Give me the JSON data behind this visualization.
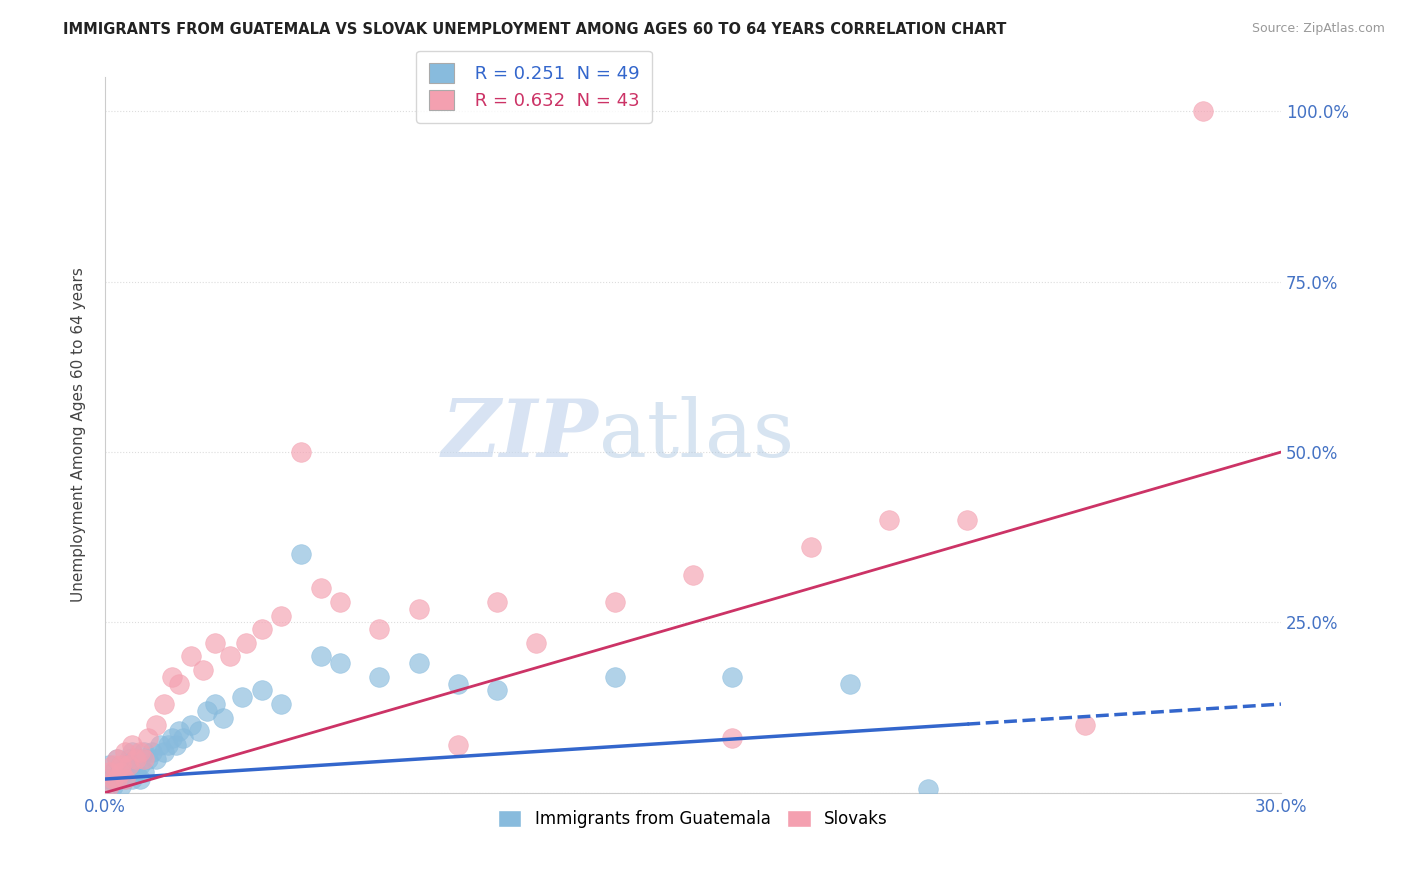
{
  "title": "IMMIGRANTS FROM GUATEMALA VS SLOVAK UNEMPLOYMENT AMONG AGES 60 TO 64 YEARS CORRELATION CHART",
  "source": "Source: ZipAtlas.com",
  "ylabel": "Unemployment Among Ages 60 to 64 years",
  "xlim": [
    0.0,
    0.3
  ],
  "ylim": [
    0.0,
    1.05
  ],
  "xticks": [
    0.0,
    0.05,
    0.1,
    0.15,
    0.2,
    0.25,
    0.3
  ],
  "yticks": [
    0.0,
    0.25,
    0.5,
    0.75,
    1.0
  ],
  "yticklabels": [
    "",
    "25.0%",
    "50.0%",
    "75.0%",
    "100.0%"
  ],
  "series1_name": "Immigrants from Guatemala",
  "series1_color": "#88bbdd",
  "series1_R": 0.251,
  "series1_N": 49,
  "series2_name": "Slovaks",
  "series2_color": "#f4a0b0",
  "series2_R": 0.632,
  "series2_N": 43,
  "background_color": "#ffffff",
  "grid_color": "#dddddd",
  "watermark_zip": "ZIP",
  "watermark_atlas": "atlas",
  "trend1_color": "#3366cc",
  "trend2_color": "#cc3366",
  "scatter1_x": [
    0.001,
    0.001,
    0.002,
    0.002,
    0.003,
    0.003,
    0.004,
    0.004,
    0.005,
    0.005,
    0.006,
    0.006,
    0.007,
    0.007,
    0.008,
    0.008,
    0.009,
    0.009,
    0.01,
    0.01,
    0.011,
    0.012,
    0.013,
    0.014,
    0.015,
    0.016,
    0.017,
    0.018,
    0.019,
    0.02,
    0.022,
    0.024,
    0.026,
    0.028,
    0.03,
    0.035,
    0.04,
    0.045,
    0.05,
    0.055,
    0.06,
    0.07,
    0.08,
    0.09,
    0.1,
    0.13,
    0.16,
    0.19,
    0.21
  ],
  "scatter1_y": [
    0.02,
    0.04,
    0.01,
    0.03,
    0.02,
    0.05,
    0.01,
    0.03,
    0.02,
    0.04,
    0.03,
    0.05,
    0.02,
    0.06,
    0.03,
    0.05,
    0.02,
    0.04,
    0.03,
    0.06,
    0.05,
    0.06,
    0.05,
    0.07,
    0.06,
    0.07,
    0.08,
    0.07,
    0.09,
    0.08,
    0.1,
    0.09,
    0.12,
    0.13,
    0.11,
    0.14,
    0.15,
    0.13,
    0.35,
    0.2,
    0.19,
    0.17,
    0.19,
    0.16,
    0.15,
    0.17,
    0.17,
    0.16,
    0.005
  ],
  "scatter2_x": [
    0.001,
    0.001,
    0.002,
    0.002,
    0.003,
    0.003,
    0.004,
    0.004,
    0.005,
    0.005,
    0.006,
    0.007,
    0.008,
    0.009,
    0.01,
    0.011,
    0.013,
    0.015,
    0.017,
    0.019,
    0.022,
    0.025,
    0.028,
    0.032,
    0.036,
    0.04,
    0.045,
    0.05,
    0.055,
    0.06,
    0.07,
    0.08,
    0.09,
    0.1,
    0.11,
    0.13,
    0.15,
    0.16,
    0.18,
    0.2,
    0.22,
    0.25,
    0.28
  ],
  "scatter2_y": [
    0.01,
    0.03,
    0.02,
    0.04,
    0.02,
    0.05,
    0.03,
    0.04,
    0.02,
    0.06,
    0.04,
    0.07,
    0.05,
    0.06,
    0.05,
    0.08,
    0.1,
    0.13,
    0.17,
    0.16,
    0.2,
    0.18,
    0.22,
    0.2,
    0.22,
    0.24,
    0.26,
    0.5,
    0.3,
    0.28,
    0.24,
    0.27,
    0.07,
    0.28,
    0.22,
    0.28,
    0.32,
    0.08,
    0.36,
    0.4,
    0.4,
    0.1,
    1.0
  ],
  "trend1_x0": 0.0,
  "trend1_x1": 0.3,
  "trend1_y0": 0.02,
  "trend1_y1": 0.13,
  "trend2_x0": 0.0,
  "trend2_x1": 0.3,
  "trend2_y0": 0.0,
  "trend2_y1": 0.5
}
